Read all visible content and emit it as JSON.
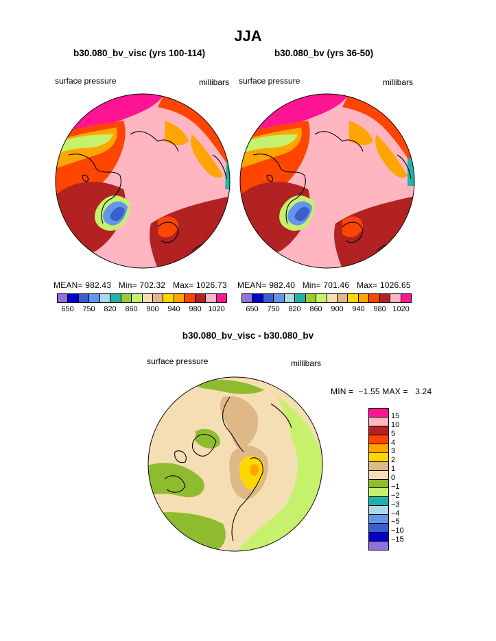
{
  "title": "JJA",
  "panels": [
    {
      "title": "b30.080_bv_visc (yrs 100-114)",
      "left_label": "surface pressure",
      "right_label": "millibars",
      "stats": "MEAN= 982.43   Min= 702.32   Max= 1026.73"
    },
    {
      "title": "b30.080_bv (yrs 36-50)",
      "left_label": "surface pressure",
      "right_label": "millibars",
      "stats": "MEAN= 982.40   Min= 701.46   Max= 1026.65"
    }
  ],
  "top_colorbar": {
    "colors": [
      "#9370db",
      "#0000cd",
      "#3a5fcd",
      "#6495ed",
      "#add8e6",
      "#20b2aa",
      "#9acd32",
      "#c5f16c",
      "#f5deb3",
      "#deb887",
      "#ffd700",
      "#ffa500",
      "#ff4500",
      "#b22222",
      "#ffb6c1",
      "#ff1493"
    ],
    "labels": [
      "650",
      "750",
      "820",
      "860",
      "900",
      "940",
      "980",
      "1020"
    ]
  },
  "diff": {
    "title": "b30.080_bv_visc - b30.080_bv",
    "left_label": "surface pressure",
    "right_label": "millibars",
    "stats": "MIN =  −1.55 MAX =   3.24",
    "colors": [
      "#ff1493",
      "#ffb6c1",
      "#b22222",
      "#ff4500",
      "#ffa500",
      "#ffd700",
      "#deb887",
      "#f5deb3",
      "#8fbc2f",
      "#c5f16c",
      "#20b2aa",
      "#add8e6",
      "#6495ed",
      "#3a5fcd",
      "#0000cd",
      "#9370db"
    ],
    "labels": [
      "15",
      "10",
      "5",
      "4",
      "3",
      "2",
      "1",
      "0",
      "−1",
      "−2",
      "−3",
      "−4",
      "−5",
      "−10",
      "−15"
    ]
  }
}
